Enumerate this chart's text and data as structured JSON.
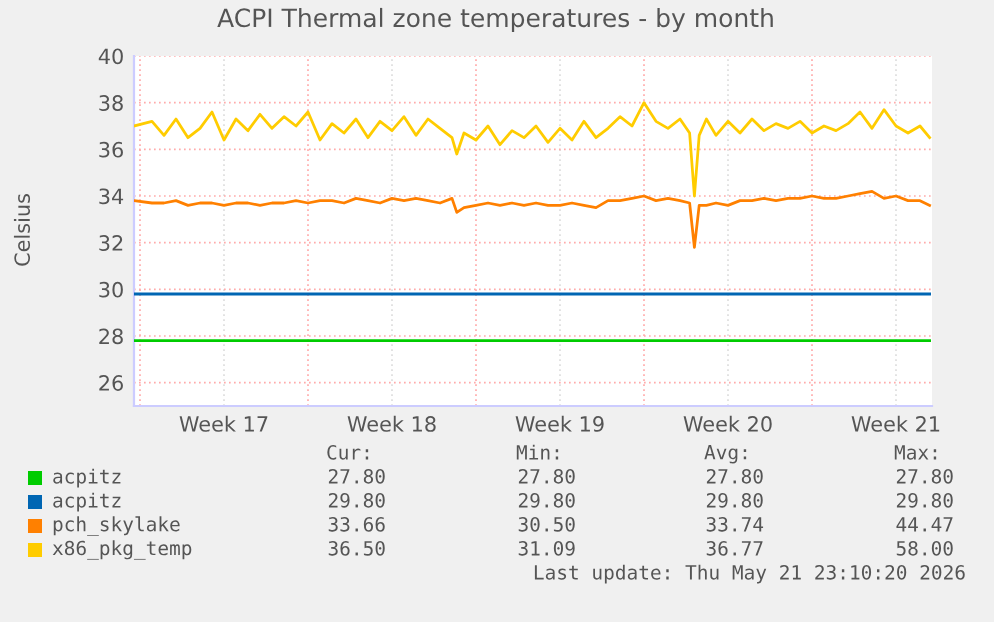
{
  "chart_data": {
    "type": "line",
    "title": "ACPI Thermal zone temperatures - by month",
    "ylabel": "Celsius",
    "xlim": [
      "2026-04-18T18:00",
      "2026-05-22T00:00"
    ],
    "xticks": [
      {
        "value": "2026-04-19",
        "label": null
      },
      {
        "value": "2026-04-22T12:00",
        "label": "Week 17"
      },
      {
        "value": "2026-04-26",
        "label": null
      },
      {
        "value": "2026-04-29T12:00",
        "label": "Week 18"
      },
      {
        "value": "2026-05-03",
        "label": null
      },
      {
        "value": "2026-05-06T12:00",
        "label": "Week 19"
      },
      {
        "value": "2026-05-10",
        "label": null
      },
      {
        "value": "2026-05-13T12:00",
        "label": "Week 20"
      },
      {
        "value": "2026-05-17",
        "label": null
      },
      {
        "value": "2026-05-20T12:00",
        "label": "Week 21"
      }
    ],
    "ylim": [
      25,
      40
    ],
    "yticks": [
      26,
      28,
      30,
      32,
      34,
      36,
      38,
      40
    ],
    "grid": true,
    "legend": "bottom",
    "series": [
      {
        "name": "acpitz",
        "color": "#00cc00",
        "x": [
          "2026-04-18T18:00",
          "2026-05-21T21:36"
        ],
        "values": [
          27.8,
          27.8
        ]
      },
      {
        "name": "acpitz",
        "color": "#0066b3",
        "x": [
          "2026-04-18T18:00",
          "2026-05-21T21:36"
        ],
        "values": [
          29.8,
          29.8
        ]
      },
      {
        "name": "pch_skylake",
        "color": "#ff8000",
        "x": [
          "2026-04-18T18:00",
          "2026-04-19T12:00",
          "2026-04-20",
          "2026-04-20T12:00",
          "2026-04-21",
          "2026-04-21T12:00",
          "2026-04-22",
          "2026-04-22T12:00",
          "2026-04-23",
          "2026-04-23T12:00",
          "2026-04-24",
          "2026-04-24T12:00",
          "2026-04-25",
          "2026-04-25T12:00",
          "2026-04-26",
          "2026-04-26T12:00",
          "2026-04-27",
          "2026-04-27T12:00",
          "2026-04-28",
          "2026-04-28T12:00",
          "2026-04-29",
          "2026-04-29T12:00",
          "2026-04-30",
          "2026-04-30T12:00",
          "2026-05-01",
          "2026-05-01T12:00",
          "2026-05-02",
          "2026-05-02T04:48",
          "2026-05-02T12:00",
          "2026-05-03",
          "2026-05-03T12:00",
          "2026-05-04",
          "2026-05-04T12:00",
          "2026-05-05",
          "2026-05-05T12:00",
          "2026-05-06",
          "2026-05-06T12:00",
          "2026-05-07",
          "2026-05-07T12:00",
          "2026-05-08",
          "2026-05-08T12:00",
          "2026-05-09",
          "2026-05-09T12:00",
          "2026-05-10",
          "2026-05-10T12:00",
          "2026-05-11",
          "2026-05-11T12:00",
          "2026-05-11T21:36",
          "2026-05-12T02:24",
          "2026-05-12T07:12",
          "2026-05-12T14:24",
          "2026-05-13",
          "2026-05-13T12:00",
          "2026-05-14",
          "2026-05-14T12:00",
          "2026-05-15",
          "2026-05-15T12:00",
          "2026-05-16",
          "2026-05-16T12:00",
          "2026-05-17",
          "2026-05-17T12:00",
          "2026-05-18",
          "2026-05-18T12:00",
          "2026-05-19",
          "2026-05-19T12:00",
          "2026-05-20",
          "2026-05-20T12:00",
          "2026-05-21",
          "2026-05-21T12:00",
          "2026-05-21T21:36"
        ],
        "values": [
          33.8,
          33.7,
          33.7,
          33.8,
          33.6,
          33.7,
          33.7,
          33.6,
          33.7,
          33.7,
          33.6,
          33.7,
          33.7,
          33.8,
          33.7,
          33.8,
          33.8,
          33.7,
          33.9,
          33.8,
          33.7,
          33.9,
          33.8,
          33.9,
          33.8,
          33.7,
          33.9,
          33.3,
          33.5,
          33.6,
          33.7,
          33.6,
          33.7,
          33.6,
          33.7,
          33.6,
          33.6,
          33.7,
          33.6,
          33.5,
          33.8,
          33.8,
          33.9,
          34.0,
          33.8,
          33.9,
          33.8,
          33.7,
          31.8,
          33.6,
          33.6,
          33.7,
          33.6,
          33.8,
          33.8,
          33.9,
          33.8,
          33.9,
          33.9,
          34.0,
          33.9,
          33.9,
          34.0,
          34.1,
          34.2,
          33.9,
          34.0,
          33.8,
          33.8,
          33.6
        ]
      },
      {
        "name": "x86_pkg_temp",
        "color": "#ffcc00",
        "x": [
          "2026-04-18T18:00",
          "2026-04-19T12:00",
          "2026-04-20",
          "2026-04-20T12:00",
          "2026-04-21",
          "2026-04-21T12:00",
          "2026-04-22",
          "2026-04-22T12:00",
          "2026-04-23",
          "2026-04-23T12:00",
          "2026-04-24",
          "2026-04-24T12:00",
          "2026-04-25",
          "2026-04-25T12:00",
          "2026-04-26",
          "2026-04-26T12:00",
          "2026-04-27",
          "2026-04-27T12:00",
          "2026-04-28",
          "2026-04-28T12:00",
          "2026-04-29",
          "2026-04-29T12:00",
          "2026-04-30",
          "2026-04-30T12:00",
          "2026-05-01",
          "2026-05-01T12:00",
          "2026-05-02",
          "2026-05-02T04:48",
          "2026-05-02T12:00",
          "2026-05-03",
          "2026-05-03T12:00",
          "2026-05-04",
          "2026-05-04T12:00",
          "2026-05-05",
          "2026-05-05T12:00",
          "2026-05-06",
          "2026-05-06T12:00",
          "2026-05-07",
          "2026-05-07T12:00",
          "2026-05-08",
          "2026-05-08T12:00",
          "2026-05-09",
          "2026-05-09T12:00",
          "2026-05-10",
          "2026-05-10T12:00",
          "2026-05-11",
          "2026-05-11T12:00",
          "2026-05-11T21:36",
          "2026-05-12T02:24",
          "2026-05-12T07:12",
          "2026-05-12T14:24",
          "2026-05-13",
          "2026-05-13T12:00",
          "2026-05-14",
          "2026-05-14T12:00",
          "2026-05-15",
          "2026-05-15T12:00",
          "2026-05-16",
          "2026-05-16T12:00",
          "2026-05-17",
          "2026-05-17T12:00",
          "2026-05-18",
          "2026-05-18T12:00",
          "2026-05-19",
          "2026-05-19T12:00",
          "2026-05-20",
          "2026-05-20T12:00",
          "2026-05-21",
          "2026-05-21T12:00",
          "2026-05-21T21:36"
        ],
        "values": [
          37.0,
          37.2,
          36.6,
          37.3,
          36.5,
          36.9,
          37.6,
          36.4,
          37.3,
          36.8,
          37.5,
          36.9,
          37.4,
          37.0,
          37.6,
          36.4,
          37.1,
          36.7,
          37.3,
          36.5,
          37.2,
          36.8,
          37.4,
          36.6,
          37.3,
          36.9,
          36.5,
          35.8,
          36.7,
          36.4,
          37.0,
          36.2,
          36.8,
          36.5,
          37.0,
          36.3,
          36.9,
          36.4,
          37.2,
          36.5,
          36.9,
          37.4,
          37.0,
          38.0,
          37.2,
          36.9,
          37.3,
          36.7,
          34.0,
          36.6,
          37.3,
          36.6,
          37.2,
          36.7,
          37.3,
          36.8,
          37.1,
          36.9,
          37.2,
          36.7,
          37.0,
          36.8,
          37.1,
          37.6,
          36.9,
          37.7,
          37.0,
          36.7,
          37.0,
          36.5
        ]
      }
    ],
    "annotations": [
      "Cur:",
      "Min:",
      "Avg:",
      "Max:",
      "27.80",
      "27.80",
      "27.80",
      "27.80",
      "29.80",
      "29.80",
      "29.80",
      "29.80",
      "33.66",
      "30.50",
      "33.74",
      "44.47",
      "36.50",
      "31.09",
      "36.77",
      "58.00",
      "Last update: Thu May 21 23:10:20 2026"
    ]
  }
}
